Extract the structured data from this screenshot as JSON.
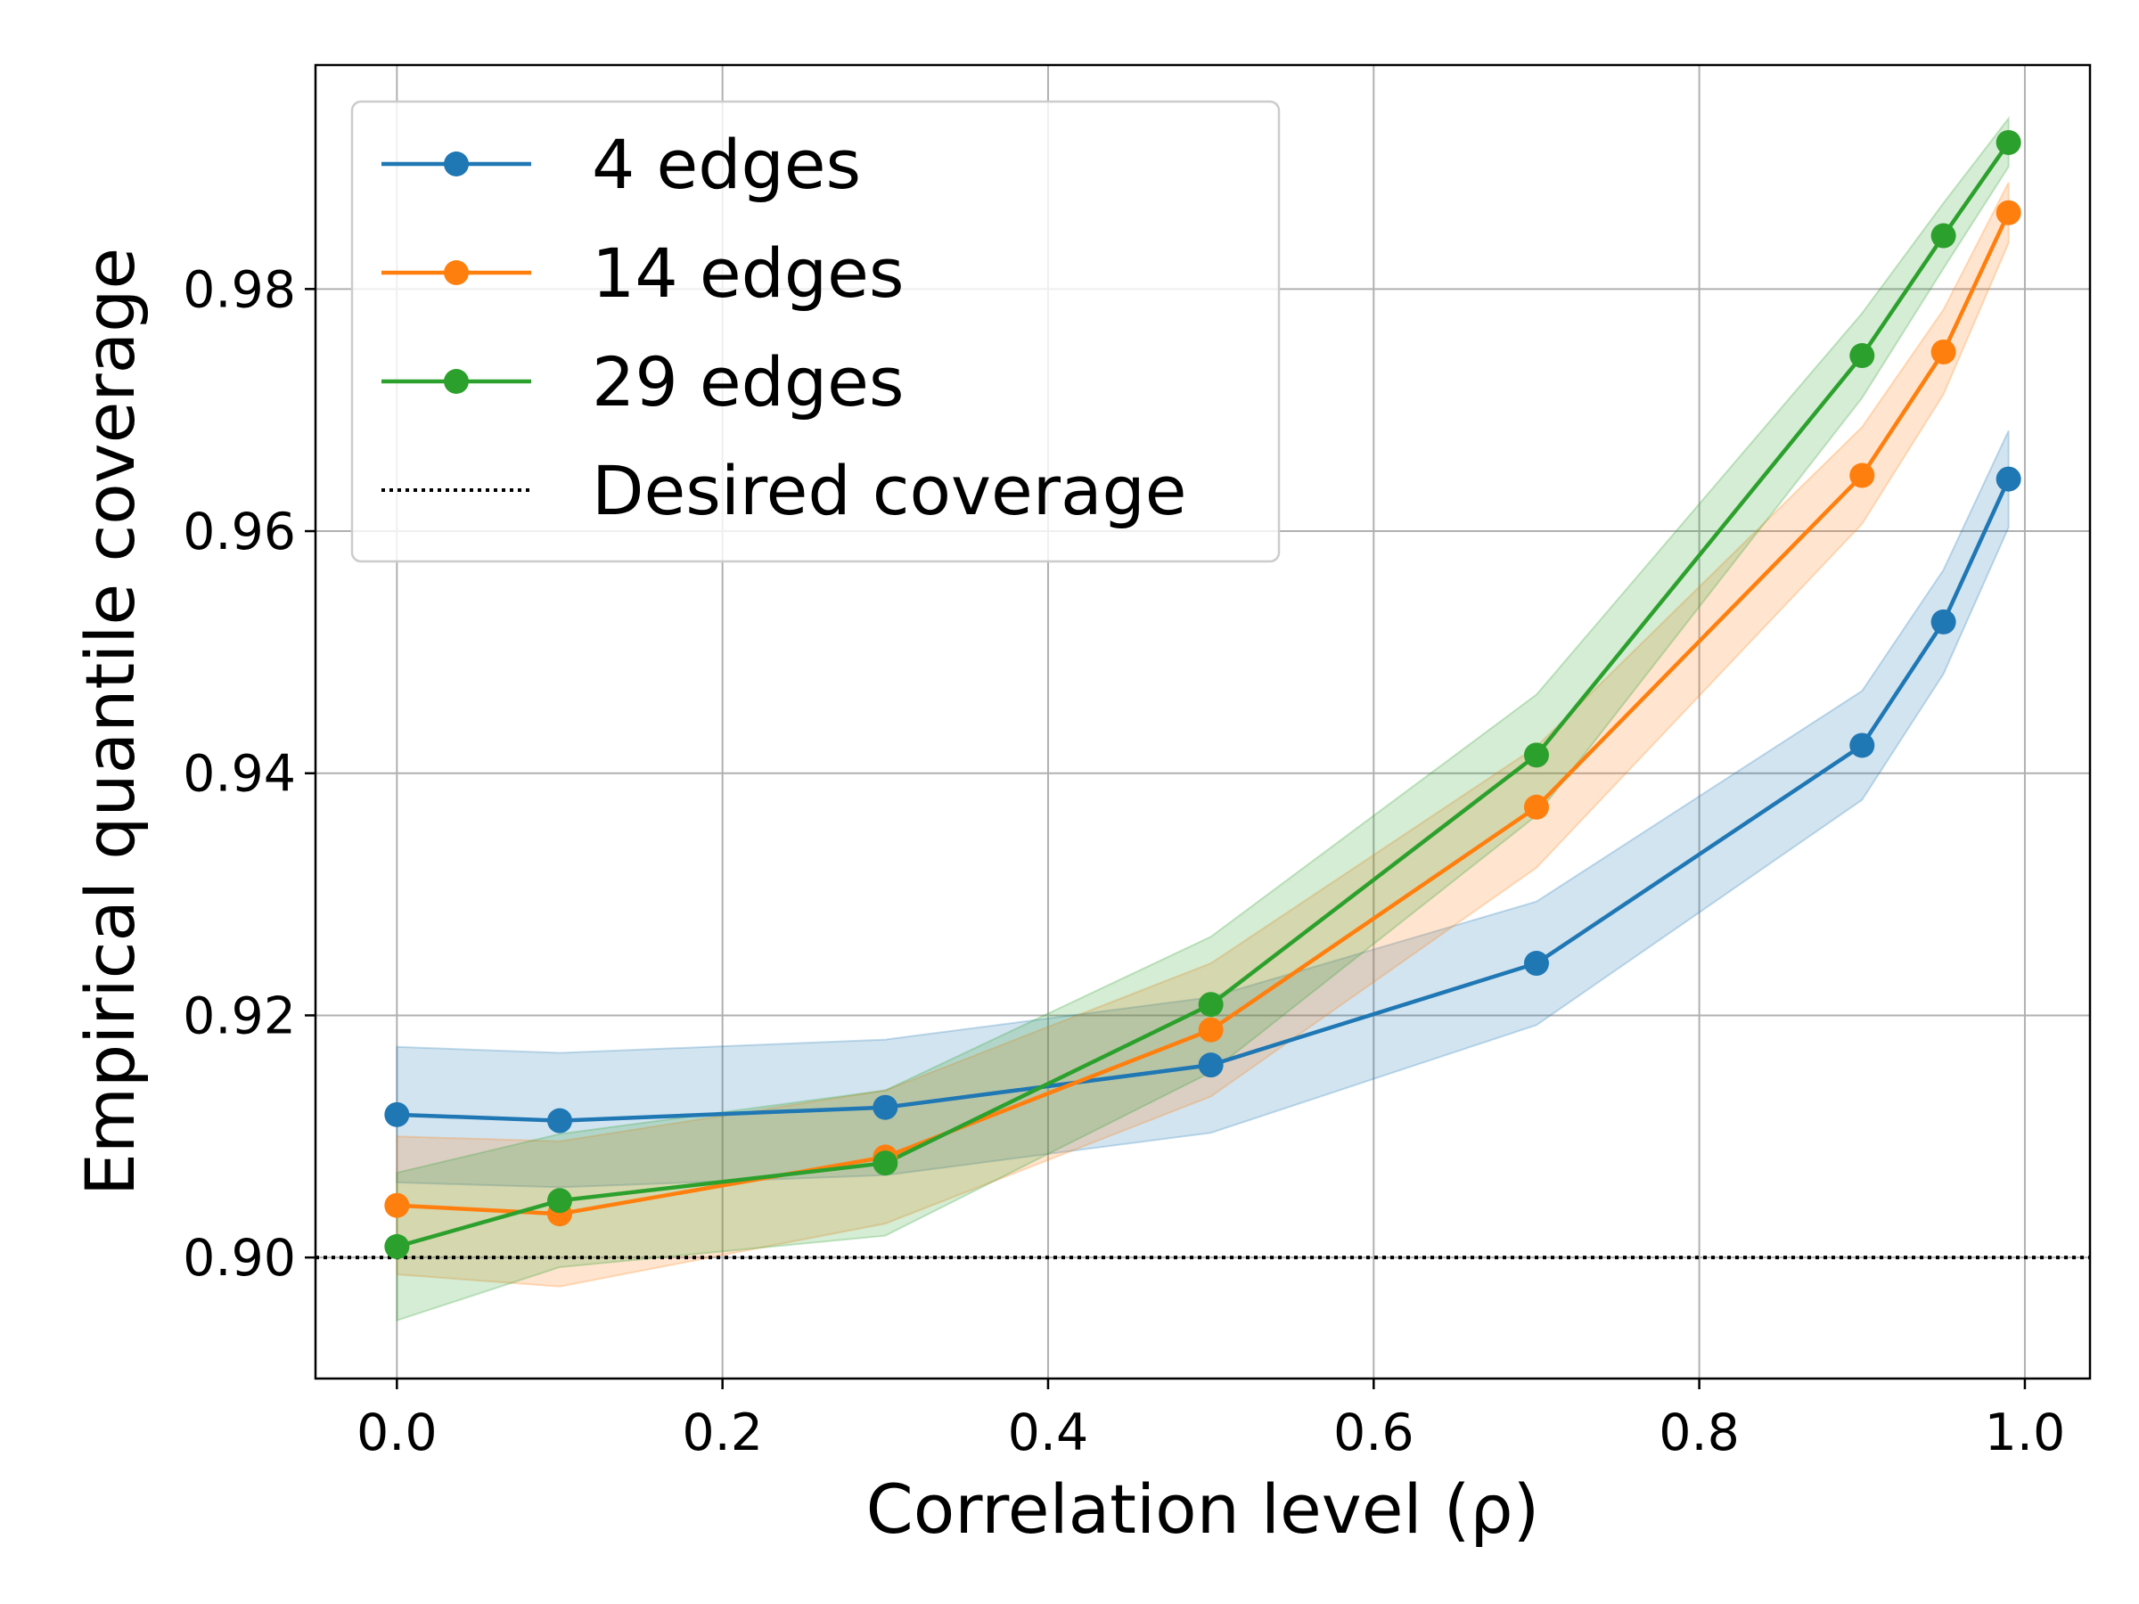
{
  "chart_data": {
    "type": "line",
    "title": "",
    "xlabel": "Correlation level (ρ)",
    "ylabel": "Empirical quantile coverage",
    "xlim": [
      -0.05,
      1.04
    ],
    "ylim": [
      0.89,
      0.9985
    ],
    "xticks": [
      0.0,
      0.2,
      0.4,
      0.6,
      0.8,
      1.0
    ],
    "xtick_labels": [
      "0.0",
      "0.2",
      "0.4",
      "0.6",
      "0.8",
      "1.0"
    ],
    "yticks": [
      0.9,
      0.92,
      0.94,
      0.96,
      0.98
    ],
    "ytick_labels": [
      "0.90",
      "0.92",
      "0.94",
      "0.96",
      "0.98"
    ],
    "grid": true,
    "legend_position": "top-left",
    "x": [
      0.0,
      0.1,
      0.3,
      0.5,
      0.7,
      0.9,
      0.95,
      0.99
    ],
    "series": [
      {
        "name": "4 edges",
        "color": "#1f77b4",
        "values": [
          0.9118,
          0.9113,
          0.9124,
          0.9159,
          0.9243,
          0.9423,
          0.9525,
          0.9643
        ],
        "lower": [
          0.9062,
          0.9058,
          0.9068,
          0.9103,
          0.9192,
          0.9378,
          0.9482,
          0.9603
        ],
        "upper": [
          0.9174,
          0.9169,
          0.918,
          0.9215,
          0.9294,
          0.9468,
          0.9568,
          0.9683
        ]
      },
      {
        "name": "14 edges",
        "color": "#ff7f0e",
        "values": [
          0.9043,
          0.9036,
          0.9083,
          0.9188,
          0.9372,
          0.9646,
          0.9748,
          0.9863
        ],
        "lower": [
          0.8986,
          0.8976,
          0.9028,
          0.9133,
          0.9322,
          0.9606,
          0.9713,
          0.9838
        ],
        "upper": [
          0.91,
          0.9096,
          0.9138,
          0.9243,
          0.9422,
          0.9686,
          0.9783,
          0.9888
        ]
      },
      {
        "name": "29 edges",
        "color": "#2ca02c",
        "values": [
          0.9009,
          0.9047,
          0.9078,
          0.9209,
          0.9415,
          0.9745,
          0.9844,
          0.9921
        ],
        "lower": [
          0.8948,
          0.8992,
          0.9018,
          0.9153,
          0.9365,
          0.971,
          0.9817,
          0.9901
        ],
        "upper": [
          0.907,
          0.9102,
          0.9138,
          0.9265,
          0.9465,
          0.978,
          0.9871,
          0.9941
        ]
      }
    ],
    "reference_line": {
      "name": "Desired coverage",
      "value": 0.9,
      "color": "#000000",
      "style": "dotted"
    }
  }
}
